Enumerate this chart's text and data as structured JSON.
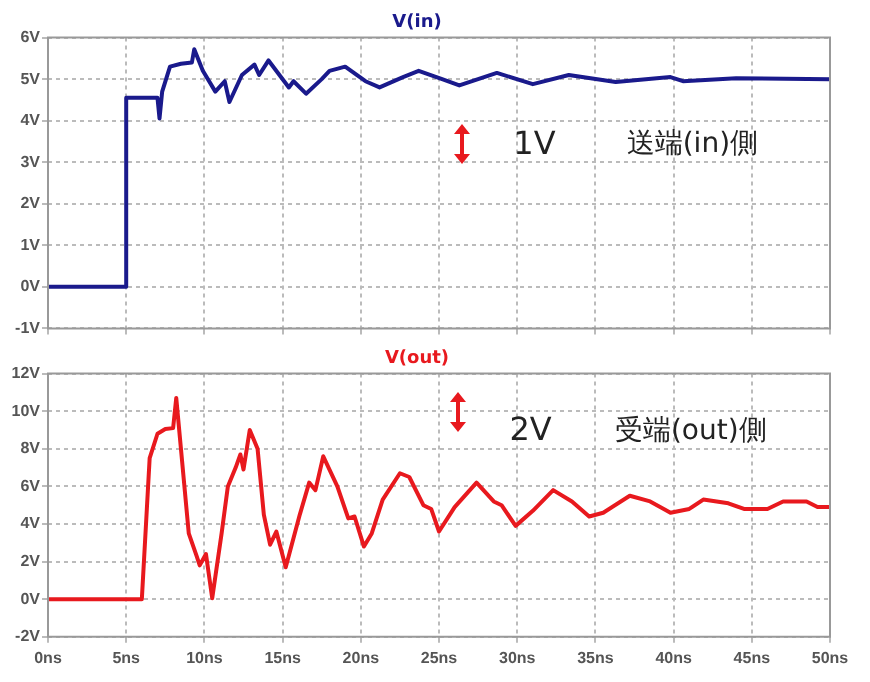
{
  "chart_data": [
    {
      "type": "line",
      "title": "V(in)",
      "marker": "none",
      "grid": true,
      "legend": false,
      "tick_labels": "y",
      "xlim": [
        0,
        50
      ],
      "xticks": [
        0,
        5,
        10,
        15,
        20,
        25,
        30,
        35,
        40,
        45,
        50
      ],
      "ylim": [
        -1,
        6
      ],
      "yticks": [
        {
          "value": -1,
          "label": "-1V"
        },
        {
          "value": 0,
          "label": "0V"
        },
        {
          "value": 1,
          "label": "1V"
        },
        {
          "value": 2,
          "label": "2V"
        },
        {
          "value": 3,
          "label": "3V"
        },
        {
          "value": 4,
          "label": "4V"
        },
        {
          "value": 5,
          "label": "5V"
        },
        {
          "value": 6,
          "label": "6V"
        }
      ],
      "annotations": [
        "1V",
        "送端(in)側"
      ],
      "series": [
        {
          "color": "#1a1a8c",
          "x": [
            0,
            5.0,
            5.0,
            7.0,
            7.13,
            7.3,
            7.8,
            8.5,
            9.2,
            9.35,
            9.9,
            10.7,
            11.3,
            11.6,
            12.4,
            13.2,
            13.5,
            14.1,
            15.4,
            15.7,
            16.5,
            17.5,
            18.0,
            19.0,
            20.3,
            21.2,
            22.7,
            23.7,
            25.2,
            26.3,
            28.7,
            31.0,
            33.3,
            36.3,
            39.8,
            40.6,
            44,
            50
          ],
          "values": [
            0,
            0,
            4.55,
            4.55,
            4.05,
            4.7,
            5.3,
            5.37,
            5.4,
            5.72,
            5.2,
            4.7,
            4.95,
            4.45,
            5.1,
            5.35,
            5.1,
            5.45,
            4.8,
            4.95,
            4.65,
            5.0,
            5.2,
            5.3,
            4.95,
            4.8,
            5.05,
            5.2,
            5.0,
            4.85,
            5.15,
            4.88,
            5.1,
            4.93,
            5.05,
            4.95,
            5.02,
            5.0
          ]
        }
      ]
    },
    {
      "type": "line",
      "title": "V(out)",
      "marker": "none",
      "grid": true,
      "legend": false,
      "xlim": [
        0,
        50
      ],
      "xticks": [
        {
          "value": 0,
          "label": "0ns"
        },
        {
          "value": 5,
          "label": "5ns"
        },
        {
          "value": 10,
          "label": "10ns"
        },
        {
          "value": 15,
          "label": "15ns"
        },
        {
          "value": 20,
          "label": "20ns"
        },
        {
          "value": 25,
          "label": "25ns"
        },
        {
          "value": 30,
          "label": "30ns"
        },
        {
          "value": 35,
          "label": "35ns"
        },
        {
          "value": 40,
          "label": "40ns"
        },
        {
          "value": 45,
          "label": "45ns"
        },
        {
          "value": 50,
          "label": "50ns"
        }
      ],
      "ylim": [
        -2,
        12
      ],
      "yticks": [
        {
          "value": -2,
          "label": "-2V"
        },
        {
          "value": 0,
          "label": "0V"
        },
        {
          "value": 2,
          "label": "2V"
        },
        {
          "value": 4,
          "label": "4V"
        },
        {
          "value": 6,
          "label": "6V"
        },
        {
          "value": 8,
          "label": "8V"
        },
        {
          "value": 10,
          "label": "10V"
        },
        {
          "value": 12,
          "label": "12V"
        }
      ],
      "annotations": [
        "2V",
        "受端(out)側"
      ],
      "series": [
        {
          "color": "#e8191e",
          "x": [
            0,
            6.0,
            6.5,
            7.0,
            7.5,
            8.0,
            8.2,
            8.5,
            9.0,
            9.5,
            9.7,
            10.1,
            10.5,
            11.1,
            11.5,
            12.0,
            12.3,
            12.5,
            12.9,
            13.4,
            13.8,
            14.2,
            14.6,
            15.2,
            16.1,
            16.7,
            17.1,
            17.6,
            18.5,
            19.2,
            19.6,
            20.2,
            20.7,
            21.4,
            22.5,
            23.1,
            24.0,
            24.5,
            25.0,
            26.0,
            27.4,
            28.5,
            29.0,
            29.9,
            31.0,
            32.3,
            33.5,
            34.6,
            35.5,
            37.2,
            38.5,
            39.8,
            41.0,
            41.9,
            43.5,
            44.5,
            46.0,
            47.0,
            48.5,
            49.2,
            50
          ],
          "values": [
            0,
            0,
            7.5,
            8.8,
            9.05,
            9.1,
            10.7,
            8.0,
            3.5,
            2.3,
            1.8,
            2.4,
            0.05,
            3.5,
            6.0,
            7.0,
            7.7,
            6.9,
            9.0,
            8.0,
            4.5,
            2.9,
            3.6,
            1.7,
            4.5,
            6.2,
            5.8,
            7.6,
            6.0,
            4.3,
            4.4,
            2.8,
            3.5,
            5.3,
            6.7,
            6.5,
            5.0,
            4.8,
            3.6,
            4.9,
            6.2,
            5.2,
            5.0,
            3.9,
            4.7,
            5.8,
            5.2,
            4.4,
            4.6,
            5.5,
            5.2,
            4.6,
            4.8,
            5.3,
            5.1,
            4.8,
            4.8,
            5.2,
            5.2,
            4.9,
            4.9
          ]
        }
      ]
    }
  ]
}
